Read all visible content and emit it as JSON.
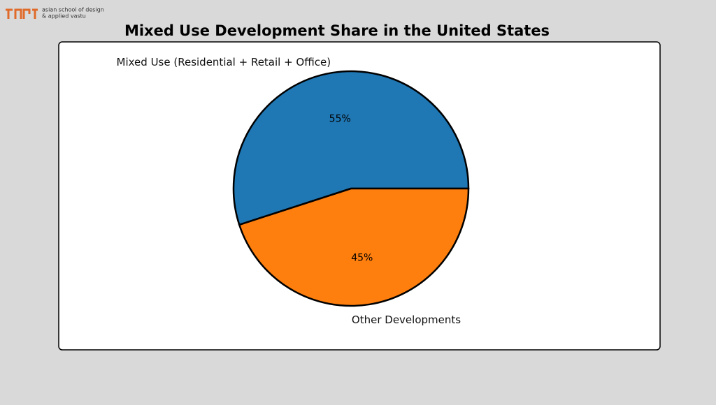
{
  "logo": {
    "line1": "asian school of design",
    "line2": "& applied vastu"
  },
  "chart_data": {
    "type": "pie",
    "title": "Mixed Use Development Share in the United States",
    "categories": [
      "Mixed Use (Residential + Retail + Office)",
      "Other Developments"
    ],
    "values": [
      55,
      45
    ],
    "value_labels": [
      "55%",
      "45%"
    ],
    "colors": [
      "#1f77b4",
      "#ff7f0e"
    ],
    "start_angle": 0,
    "counterclockwise": true
  }
}
